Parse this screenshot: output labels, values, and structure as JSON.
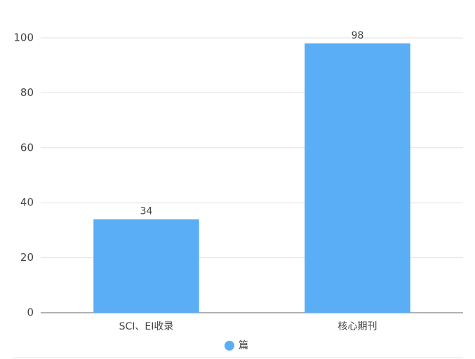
{
  "chart_data": {
    "type": "bar",
    "categories": [
      "SCI、EI收录",
      "核心期刊"
    ],
    "series": [
      {
        "name": "篇",
        "color": "#5aaef5",
        "values": [
          34,
          98
        ]
      }
    ],
    "ylim": [
      0,
      100
    ],
    "yticks": [
      0,
      20,
      40,
      60,
      80,
      100
    ],
    "grid": true,
    "legend": "bottom",
    "data_labels": true
  }
}
